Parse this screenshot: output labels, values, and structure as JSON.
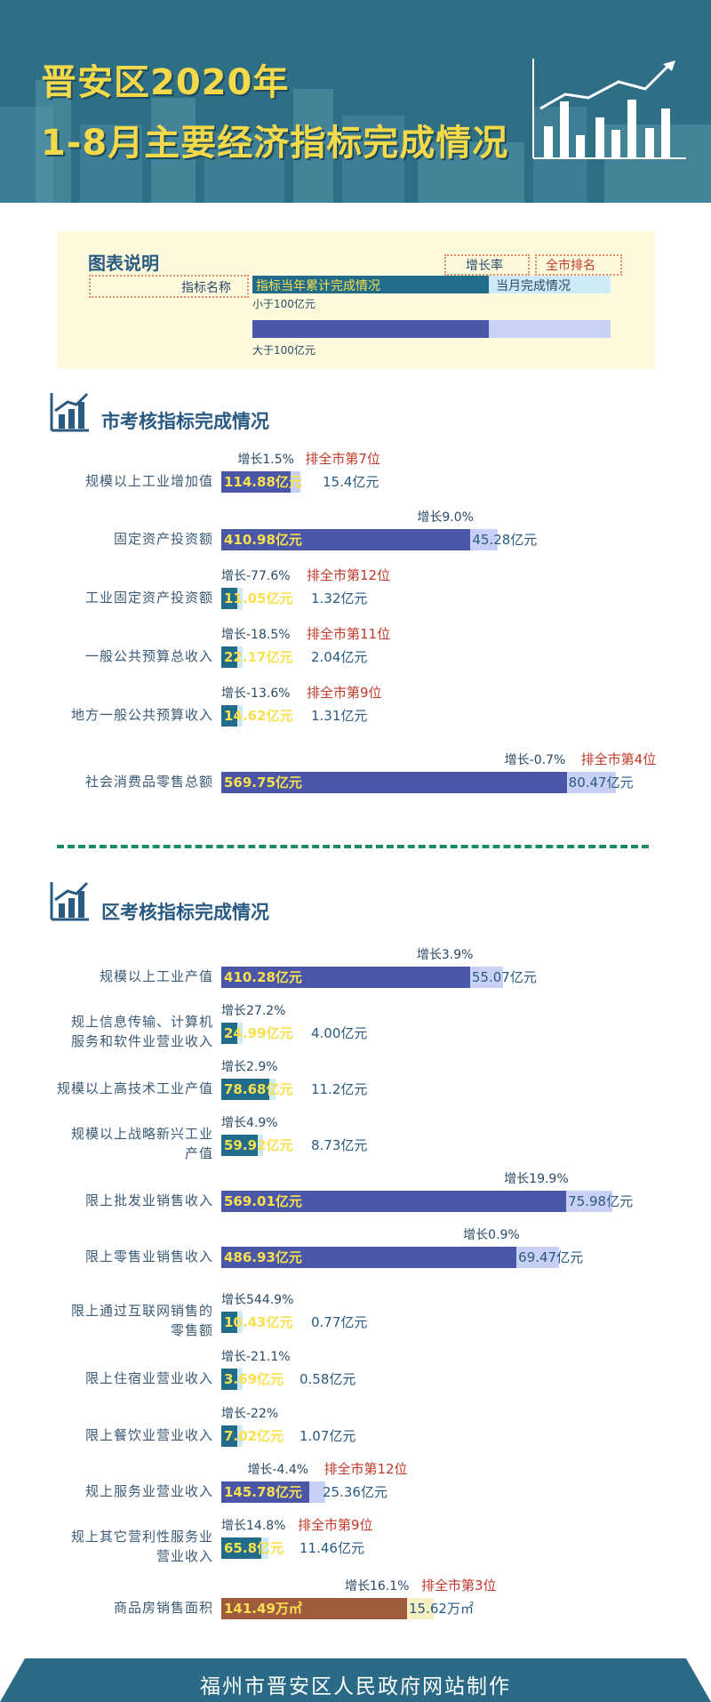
{
  "header": {
    "title_line1": "晋安区2020年",
    "title_line2": "1-8月主要经济指标完成情况"
  },
  "legend": {
    "title": "图表说明",
    "name_label": "指标名称",
    "growth_label": "增长率",
    "rank_label": "全市排名",
    "cumulative_label": "指标当年累计完成情况",
    "monthly_label": "当月完成情况",
    "small_note": "小于100亿元",
    "large_note": "大于100亿元"
  },
  "colors": {
    "small_bar": "#206c8a",
    "large_bar": "#4a57a8",
    "month_small": "#cdeaf6",
    "month_large": "#c8d0f5",
    "housing_bar": "#a05a3e",
    "housing_month": "#f6f0c2",
    "rank_text": "#c0392b"
  },
  "sections": {
    "city_title": "市考核指标完成情况",
    "district_title": "区考核指标完成情况"
  },
  "chart_data": [
    {
      "type": "bar",
      "title": "市考核指标完成情况",
      "series": [
        {
          "name": "指标当年累计完成情况",
          "values": [
            114.88,
            410.98,
            11.05,
            22.17,
            14.62,
            569.75
          ]
        },
        {
          "name": "当月完成情况",
          "values": [
            15.4,
            45.28,
            1.32,
            2.04,
            1.31,
            80.47
          ]
        }
      ],
      "rows": [
        {
          "label": "规模以上工业增加值",
          "value_text": "114.88亿元",
          "month_text": "15.4亿元",
          "growth": "增长1.5%",
          "rank": "排全市第7位",
          "kind": "large"
        },
        {
          "label": "固定资产投资额",
          "value_text": "410.98亿元",
          "month_text": "45.28亿元",
          "growth": "增长9.0%",
          "rank": "",
          "kind": "large"
        },
        {
          "label": "工业固定资产投资额",
          "value_text": "11.05亿元",
          "month_text": "1.32亿元",
          "growth": "增长-77.6%",
          "rank": "排全市第12位",
          "kind": "small"
        },
        {
          "label": "一般公共预算总收入",
          "value_text": "22.17亿元",
          "month_text": "2.04亿元",
          "growth": "增长-18.5%",
          "rank": "排全市第11位",
          "kind": "small"
        },
        {
          "label": "地方一般公共预算收入",
          "value_text": "14.62亿元",
          "month_text": "1.31亿元",
          "growth": "增长-13.6%",
          "rank": "排全市第9位",
          "kind": "small"
        },
        {
          "label": "社会消费品零售总额",
          "value_text": "569.75亿元",
          "month_text": "80.47亿元",
          "growth": "增长-0.7%",
          "rank": "排全市第4位",
          "kind": "large"
        }
      ]
    },
    {
      "type": "bar",
      "title": "区考核指标完成情况",
      "series": [
        {
          "name": "指标当年累计完成情况",
          "values": [
            410.28,
            24.99,
            78.68,
            59.92,
            569.01,
            486.93,
            10.43,
            3.69,
            7.02,
            145.78,
            65.8,
            141.49
          ]
        },
        {
          "name": "当月完成情况",
          "values": [
            55.07,
            4.0,
            11.2,
            8.73,
            75.98,
            69.47,
            0.77,
            0.58,
            1.07,
            25.36,
            11.46,
            15.62
          ]
        }
      ],
      "rows": [
        {
          "label": "规模以上工业产值",
          "value_text": "410.28亿元",
          "month_text": "55.07亿元",
          "growth": "增长3.9%",
          "rank": "",
          "kind": "large"
        },
        {
          "label": "规上信息传输、计算机\n服务和软件业营业收入",
          "value_text": "24.99亿元",
          "month_text": "4.00亿元",
          "growth": "增长27.2%",
          "rank": "",
          "kind": "small"
        },
        {
          "label": "规模以上高技术工业产值",
          "value_text": "78.68亿元",
          "month_text": "11.2亿元",
          "growth": "增长2.9%",
          "rank": "",
          "kind": "small"
        },
        {
          "label": "规模以上战略新兴工业\n产值",
          "value_text": "59.92亿元",
          "month_text": "8.73亿元",
          "growth": "增长4.9%",
          "rank": "",
          "kind": "small"
        },
        {
          "label": "限上批发业销售收入",
          "value_text": "569.01亿元",
          "month_text": "75.98亿元",
          "growth": "增长19.9%",
          "rank": "",
          "kind": "large"
        },
        {
          "label": "限上零售业销售收入",
          "value_text": "486.93亿元",
          "month_text": "69.47亿元",
          "growth": "增长0.9%",
          "rank": "",
          "kind": "large"
        },
        {
          "label": "限上通过互联网销售的\n零售额",
          "value_text": "10.43亿元",
          "month_text": "0.77亿元",
          "growth": "增长544.9%",
          "rank": "",
          "kind": "small"
        },
        {
          "label": "限上住宿业营业收入",
          "value_text": "3.69亿元",
          "month_text": "0.58亿元",
          "growth": "增长-21.1%",
          "rank": "",
          "kind": "small"
        },
        {
          "label": "限上餐饮业营业收入",
          "value_text": "7.02亿元",
          "month_text": "1.07亿元",
          "growth": "增长-22%",
          "rank": "",
          "kind": "small"
        },
        {
          "label": "规上服务业营业收入",
          "value_text": "145.78亿元",
          "month_text": "25.36亿元",
          "growth": "增长-4.4%",
          "rank": "排全市第12位",
          "kind": "large"
        },
        {
          "label": "规上其它营利性服务业\n营业收入",
          "value_text": "65.8亿元",
          "month_text": "11.46亿元",
          "growth": "增长14.8%",
          "rank": "排全市第9位",
          "kind": "small"
        },
        {
          "label": "商品房销售面积",
          "value_text": "141.49万㎡",
          "month_text": "15.62万㎡",
          "growth": "增长16.1%",
          "rank": "排全市第3位",
          "kind": "housing"
        }
      ]
    }
  ],
  "footer": {
    "text": "福州市晋安区人民政府网站制作"
  }
}
